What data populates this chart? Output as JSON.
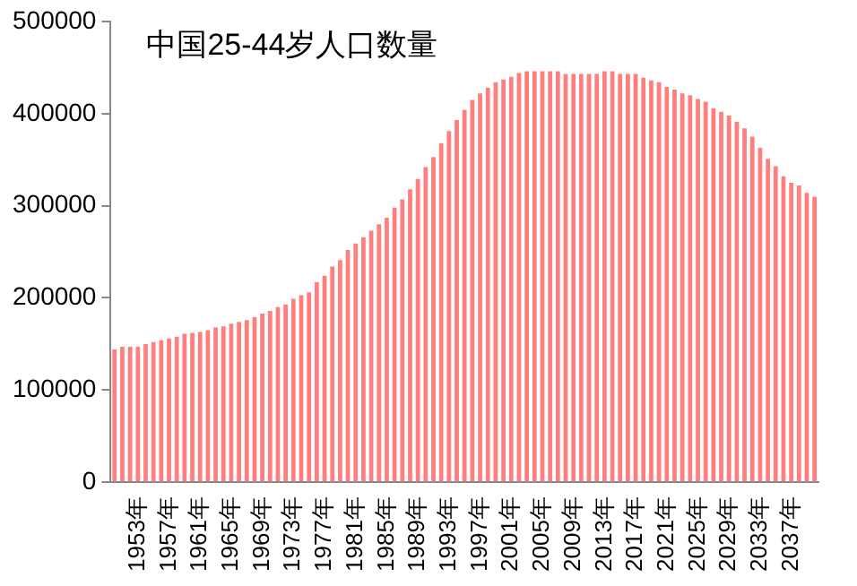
{
  "chart_data": {
    "type": "bar",
    "title": "中国25-44岁人口数量",
    "categories": [
      null,
      null,
      null,
      "1953年",
      null,
      null,
      null,
      "1957年",
      null,
      null,
      null,
      "1961年",
      null,
      null,
      null,
      "1965年",
      null,
      null,
      null,
      "1969年",
      null,
      null,
      null,
      "1973年",
      null,
      null,
      null,
      "1977年",
      null,
      null,
      null,
      "1981年",
      null,
      null,
      null,
      "1985年",
      null,
      null,
      null,
      "1989年",
      null,
      null,
      null,
      "1993年",
      null,
      null,
      null,
      "1997年",
      null,
      null,
      null,
      "2001年",
      null,
      null,
      null,
      "2005年",
      null,
      null,
      null,
      "2009年",
      null,
      null,
      null,
      "2013年",
      null,
      null,
      null,
      "2017年",
      null,
      null,
      null,
      "2021年",
      null,
      null,
      null,
      "2025年",
      null,
      null,
      null,
      "2029年",
      null,
      null,
      null,
      "2033年",
      null,
      null,
      null,
      "2037年",
      null,
      null,
      null
    ],
    "values": [
      144000,
      147000,
      147000,
      147000,
      150000,
      152000,
      154000,
      156000,
      158000,
      161000,
      162000,
      163000,
      165000,
      168000,
      169000,
      172000,
      174000,
      176000,
      179000,
      183000,
      186000,
      190000,
      193000,
      199000,
      203000,
      206000,
      217000,
      224000,
      234000,
      241000,
      252000,
      259000,
      266000,
      273000,
      280000,
      287000,
      298000,
      307000,
      318000,
      329000,
      342000,
      353000,
      368000,
      381000,
      393000,
      404000,
      415000,
      422000,
      428000,
      434000,
      437000,
      440000,
      444000,
      446000,
      446000,
      446000,
      446000,
      446000,
      443000,
      443000,
      443000,
      443000,
      443000,
      446000,
      446000,
      443000,
      443000,
      443000,
      439000,
      436000,
      434000,
      429000,
      426000,
      422000,
      420000,
      416000,
      413000,
      406000,
      402000,
      398000,
      391000,
      384000,
      375000,
      363000,
      351000,
      343000,
      332000,
      325000,
      322000,
      314000,
      310000
    ],
    "color": "#ff7f7f",
    "ylim": [
      0,
      500000
    ],
    "yticks": [
      0,
      100000,
      200000,
      300000,
      400000,
      500000
    ],
    "grid": false,
    "legend": false
  }
}
